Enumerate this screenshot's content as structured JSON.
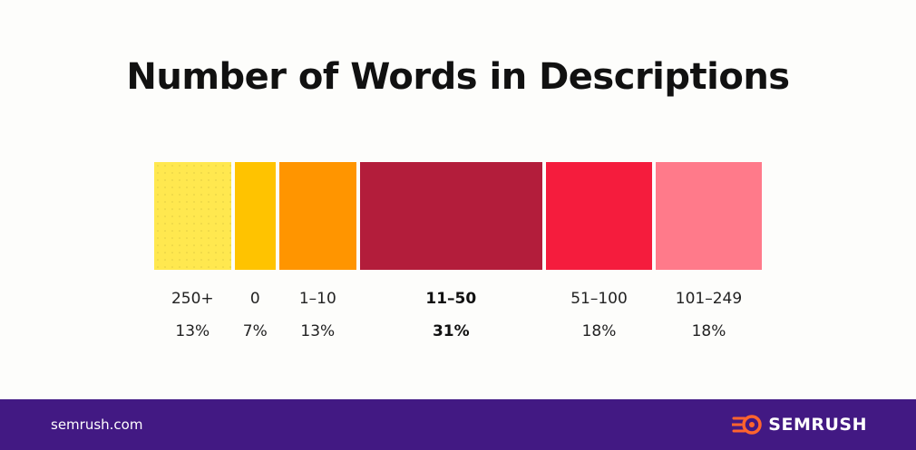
{
  "header": {
    "title": "Number of Words in Descriptions"
  },
  "chart_data": {
    "type": "bar",
    "orientation": "stacked-horizontal",
    "title": "Number of Words in Descriptions",
    "unit": "%",
    "categories": [
      "250+",
      "0",
      "1–10",
      "11–50",
      "51–100",
      "101–249"
    ],
    "values": [
      13,
      7,
      13,
      31,
      18,
      18
    ],
    "value_labels": [
      "13%",
      "7%",
      "13%",
      "31%",
      "18%",
      "18%"
    ],
    "highlight": "11–50",
    "colors": [
      "#ffe84f",
      "#ffc300",
      "#ff9500",
      "#b31d3b",
      "#f51c3d",
      "#ff7a8a"
    ]
  },
  "footer": {
    "site": "semrush.com",
    "brand": "SEMRUSH",
    "background": "#421983",
    "icon": "semrush-flame-icon"
  }
}
